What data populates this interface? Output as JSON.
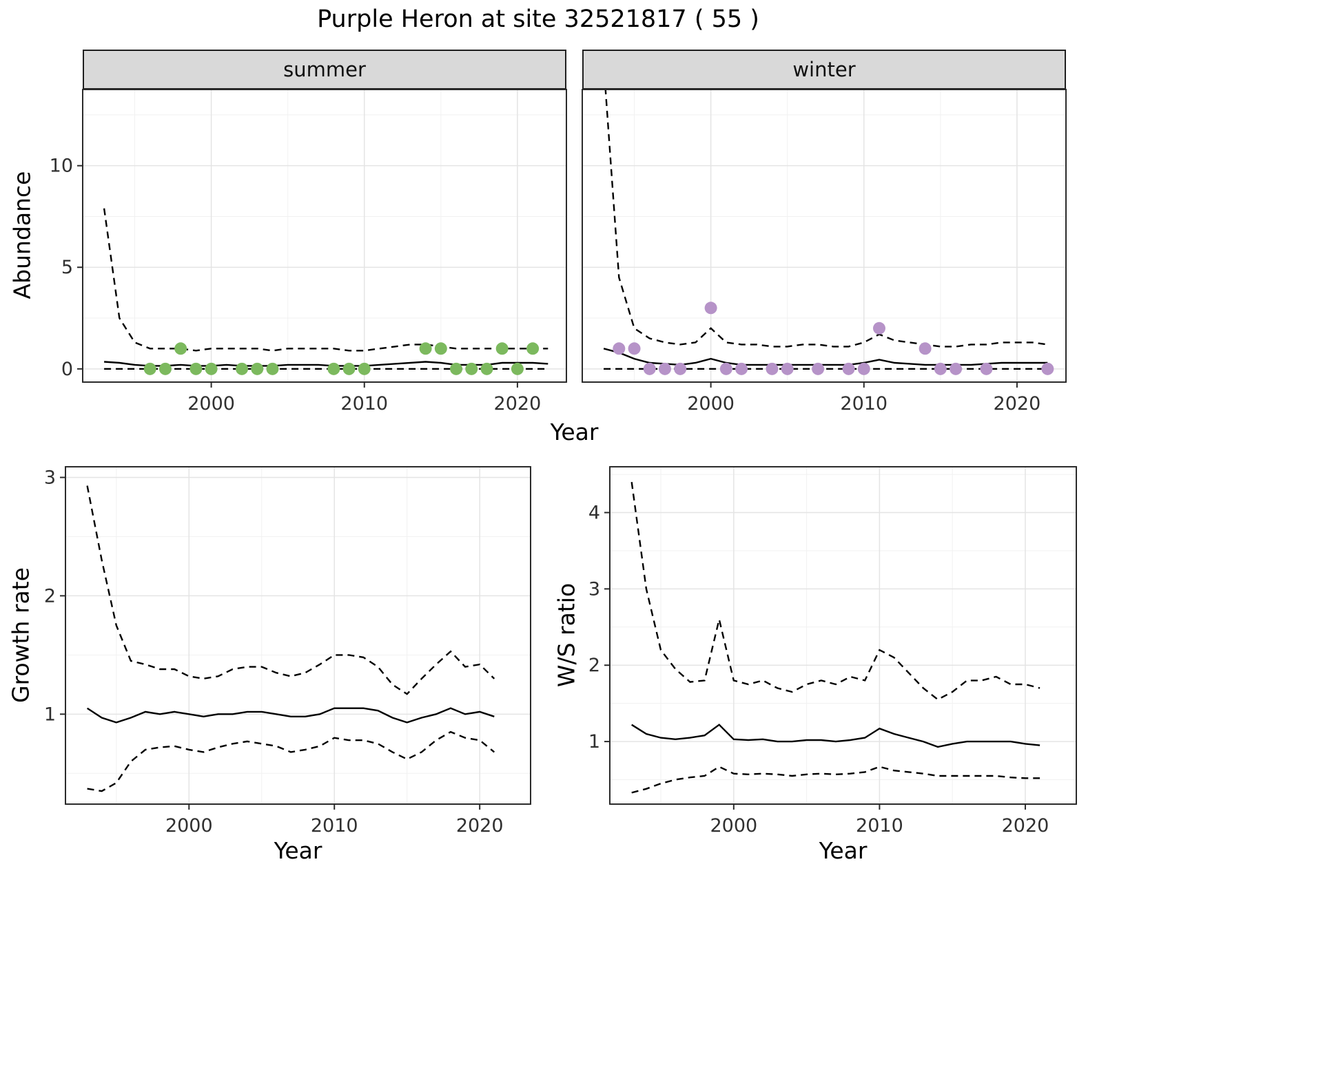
{
  "figure": {
    "title": "Purple Heron at site 32521817 ( 55 )"
  },
  "top_row": {
    "ylabel": "Abundance",
    "xlabel": "Year",
    "facets": [
      {
        "label": "summer"
      },
      {
        "label": "winter"
      }
    ]
  },
  "bottom_left": {
    "ylabel": "Growth rate",
    "xlabel": "Year"
  },
  "bottom_right": {
    "ylabel": "W/S ratio",
    "xlabel": "Year"
  },
  "colors": {
    "summer_points": "#7cb95e",
    "winter_points": "#b693c8",
    "line": "#000000",
    "grid_major": "#e4e4e4",
    "grid_minor": "#f1f1f1",
    "panel_border": "#2b2b2b",
    "strip_bg": "#d9d9d9",
    "tick_text": "#303030"
  },
  "chart_data": [
    {
      "id": "summer",
      "type": "line",
      "facet": "summer",
      "ylabel": "Abundance",
      "xlabel": "Year",
      "xlim": [
        1991.6,
        2023.2
      ],
      "ylim": [
        -0.65,
        13.75
      ],
      "xticks": [
        2000,
        2010,
        2020
      ],
      "yticks": [
        0,
        5,
        10
      ],
      "x": [
        1993,
        1994,
        1995,
        1996,
        1997,
        1998,
        1999,
        2000,
        2001,
        2002,
        2003,
        2004,
        2005,
        2006,
        2007,
        2008,
        2009,
        2010,
        2011,
        2012,
        2013,
        2014,
        2015,
        2016,
        2017,
        2018,
        2019,
        2020,
        2021,
        2022
      ],
      "series": [
        {
          "name": "median",
          "style": "solid",
          "values": [
            0.35,
            0.3,
            0.2,
            0.15,
            0.15,
            0.2,
            0.15,
            0.15,
            0.2,
            0.15,
            0.15,
            0.15,
            0.2,
            0.2,
            0.2,
            0.15,
            0.15,
            0.15,
            0.2,
            0.25,
            0.3,
            0.35,
            0.3,
            0.2,
            0.2,
            0.2,
            0.3,
            0.3,
            0.3,
            0.25
          ]
        },
        {
          "name": "upper_ci",
          "style": "dashed",
          "values": [
            7.9,
            2.5,
            1.3,
            1.0,
            1.0,
            1.0,
            0.9,
            1.0,
            1.0,
            1.0,
            1.0,
            0.9,
            1.0,
            1.0,
            1.0,
            1.0,
            0.9,
            0.9,
            1.0,
            1.1,
            1.2,
            1.2,
            1.1,
            1.0,
            1.0,
            1.0,
            1.0,
            1.0,
            1.0,
            1.0
          ]
        },
        {
          "name": "lower_ci",
          "style": "dashed",
          "values": [
            0,
            0,
            0,
            0,
            0,
            0,
            0,
            0,
            0,
            0,
            0,
            0,
            0,
            0,
            0,
            0,
            0,
            0,
            0,
            0,
            0,
            0,
            0,
            0,
            0,
            0,
            0,
            0,
            0,
            0
          ]
        }
      ],
      "points": {
        "name": "observed_counts",
        "color": "#7cb95e",
        "x": [
          1996,
          1997,
          1998,
          1999,
          2000,
          2002,
          2003,
          2004,
          2008,
          2009,
          2010,
          2014,
          2015,
          2016,
          2017,
          2018,
          2019,
          2020,
          2021
        ],
        "y": [
          0,
          0,
          1,
          0,
          0,
          0,
          0,
          0,
          0,
          0,
          0,
          1,
          1,
          0,
          0,
          0,
          1,
          0,
          1
        ]
      }
    },
    {
      "id": "winter",
      "type": "line",
      "facet": "winter",
      "ylabel": "Abundance",
      "xlabel": "Year",
      "xlim": [
        1991.6,
        2023.2
      ],
      "ylim": [
        -0.65,
        13.75
      ],
      "xticks": [
        2000,
        2010,
        2020
      ],
      "yticks": [
        0,
        5,
        10
      ],
      "x": [
        1993,
        1994,
        1995,
        1996,
        1997,
        1998,
        1999,
        2000,
        2001,
        2002,
        2003,
        2004,
        2005,
        2006,
        2007,
        2008,
        2009,
        2010,
        2011,
        2012,
        2013,
        2014,
        2015,
        2016,
        2017,
        2018,
        2019,
        2020,
        2021,
        2022
      ],
      "series": [
        {
          "name": "median",
          "style": "solid",
          "values": [
            1.0,
            0.8,
            0.5,
            0.3,
            0.25,
            0.2,
            0.3,
            0.5,
            0.3,
            0.2,
            0.2,
            0.2,
            0.2,
            0.2,
            0.2,
            0.2,
            0.2,
            0.3,
            0.45,
            0.3,
            0.25,
            0.2,
            0.2,
            0.2,
            0.2,
            0.25,
            0.3,
            0.3,
            0.3,
            0.3
          ]
        },
        {
          "name": "upper_ci",
          "style": "dashed",
          "values": [
            15,
            4.5,
            2.0,
            1.5,
            1.3,
            1.2,
            1.3,
            2.0,
            1.3,
            1.2,
            1.2,
            1.1,
            1.1,
            1.2,
            1.2,
            1.1,
            1.1,
            1.3,
            1.7,
            1.4,
            1.3,
            1.2,
            1.1,
            1.1,
            1.2,
            1.2,
            1.3,
            1.3,
            1.3,
            1.2
          ]
        },
        {
          "name": "lower_ci",
          "style": "dashed",
          "values": [
            0,
            0,
            0,
            0,
            0,
            0,
            0,
            0,
            0,
            0,
            0,
            0,
            0,
            0,
            0,
            0,
            0,
            0,
            0,
            0,
            0,
            0,
            0,
            0,
            0,
            0,
            0,
            0,
            0,
            0
          ]
        }
      ],
      "points": {
        "name": "observed_counts",
        "color": "#b693c8",
        "x": [
          1994,
          1995,
          1996,
          1997,
          1998,
          2000,
          2001,
          2002,
          2004,
          2005,
          2007,
          2009,
          2010,
          2011,
          2014,
          2015,
          2016,
          2018,
          2022
        ],
        "y": [
          1,
          1,
          0,
          0,
          0,
          3,
          0,
          0,
          0,
          0,
          0,
          0,
          0,
          2,
          1,
          0,
          0,
          0,
          0
        ]
      }
    },
    {
      "id": "growth",
      "type": "line",
      "ylabel": "Growth rate",
      "xlabel": "Year",
      "xlim": [
        1991.5,
        2023.5
      ],
      "ylim": [
        0.24,
        3.09
      ],
      "xticks": [
        2000,
        2010,
        2020
      ],
      "yticks": [
        1,
        2,
        3
      ],
      "x": [
        1993,
        1994,
        1995,
        1996,
        1997,
        1998,
        1999,
        2000,
        2001,
        2002,
        2003,
        2004,
        2005,
        2006,
        2007,
        2008,
        2009,
        2010,
        2011,
        2012,
        2013,
        2014,
        2015,
        2016,
        2017,
        2018,
        2019,
        2020,
        2021
      ],
      "series": [
        {
          "name": "median",
          "style": "solid",
          "values": [
            1.05,
            0.97,
            0.93,
            0.97,
            1.02,
            1.0,
            1.02,
            1.0,
            0.98,
            1.0,
            1.0,
            1.02,
            1.02,
            1.0,
            0.98,
            0.98,
            1.0,
            1.05,
            1.05,
            1.05,
            1.03,
            0.97,
            0.93,
            0.97,
            1.0,
            1.05,
            1.0,
            1.02,
            0.98
          ]
        },
        {
          "name": "upper_ci",
          "style": "dashed",
          "values": [
            2.93,
            2.3,
            1.75,
            1.45,
            1.42,
            1.38,
            1.38,
            1.32,
            1.3,
            1.32,
            1.38,
            1.4,
            1.4,
            1.35,
            1.32,
            1.35,
            1.42,
            1.5,
            1.5,
            1.48,
            1.4,
            1.25,
            1.17,
            1.3,
            1.42,
            1.53,
            1.4,
            1.42,
            1.3
          ]
        },
        {
          "name": "lower_ci",
          "style": "dashed",
          "values": [
            0.37,
            0.35,
            0.42,
            0.6,
            0.7,
            0.72,
            0.73,
            0.7,
            0.68,
            0.72,
            0.75,
            0.77,
            0.75,
            0.73,
            0.68,
            0.7,
            0.73,
            0.8,
            0.78,
            0.78,
            0.75,
            0.68,
            0.62,
            0.68,
            0.78,
            0.85,
            0.8,
            0.78,
            0.68
          ]
        }
      ]
    },
    {
      "id": "ws",
      "type": "line",
      "ylabel": "W/S ratio",
      "xlabel": "Year",
      "xlim": [
        1991.5,
        2023.5
      ],
      "ylim": [
        0.18,
        4.6
      ],
      "xticks": [
        2000,
        2010,
        2020
      ],
      "yticks": [
        1,
        2,
        3,
        4
      ],
      "x": [
        1993,
        1994,
        1995,
        1996,
        1997,
        1998,
        1999,
        2000,
        2001,
        2002,
        2003,
        2004,
        2005,
        2006,
        2007,
        2008,
        2009,
        2010,
        2011,
        2012,
        2013,
        2014,
        2015,
        2016,
        2017,
        2018,
        2019,
        2020,
        2021
      ],
      "series": [
        {
          "name": "median",
          "style": "solid",
          "values": [
            1.22,
            1.1,
            1.05,
            1.03,
            1.05,
            1.08,
            1.22,
            1.03,
            1.02,
            1.03,
            1.0,
            1.0,
            1.02,
            1.02,
            1.0,
            1.02,
            1.05,
            1.17,
            1.1,
            1.05,
            1.0,
            0.93,
            0.97,
            1.0,
            1.0,
            1.0,
            1.0,
            0.97,
            0.95
          ]
        },
        {
          "name": "upper_ci",
          "style": "dashed",
          "values": [
            4.4,
            3.0,
            2.2,
            1.95,
            1.78,
            1.8,
            2.6,
            1.8,
            1.75,
            1.8,
            1.7,
            1.65,
            1.75,
            1.8,
            1.75,
            1.85,
            1.8,
            2.2,
            2.1,
            1.9,
            1.7,
            1.55,
            1.65,
            1.8,
            1.8,
            1.85,
            1.75,
            1.75,
            1.7
          ]
        },
        {
          "name": "lower_ci",
          "style": "dashed",
          "values": [
            0.33,
            0.38,
            0.45,
            0.5,
            0.53,
            0.55,
            0.67,
            0.58,
            0.57,
            0.58,
            0.57,
            0.55,
            0.57,
            0.58,
            0.57,
            0.58,
            0.6,
            0.67,
            0.62,
            0.6,
            0.58,
            0.55,
            0.55,
            0.55,
            0.55,
            0.55,
            0.53,
            0.52,
            0.52
          ]
        }
      ]
    }
  ]
}
